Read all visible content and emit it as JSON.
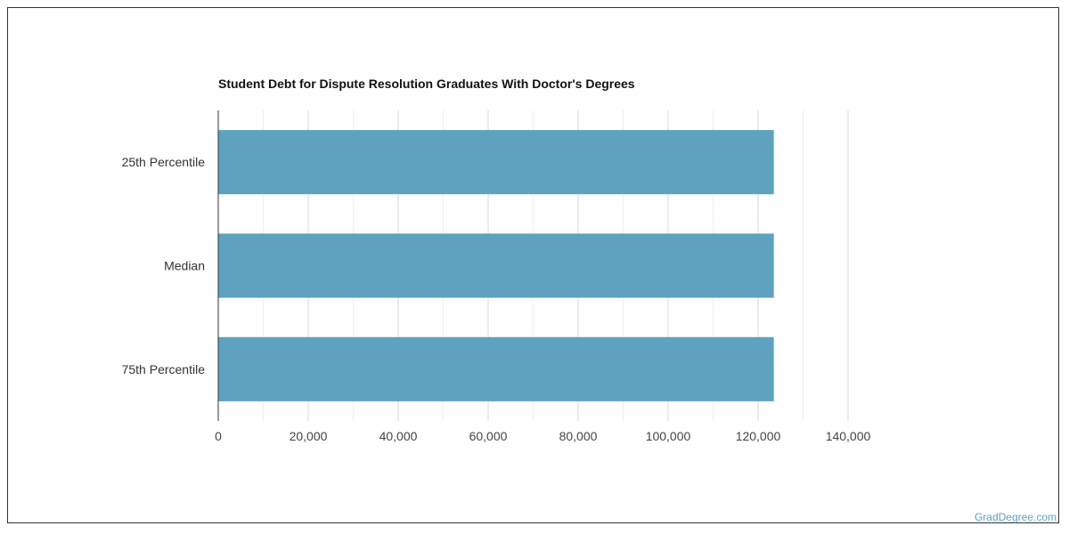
{
  "chart_data": {
    "type": "bar",
    "orientation": "horizontal",
    "title": "Student Debt for Dispute Resolution Graduates With Doctor's Degrees",
    "categories": [
      "25th Percentile",
      "Median",
      "75th Percentile"
    ],
    "values": [
      123500,
      123500,
      123500
    ],
    "xlim": [
      0,
      140000
    ],
    "ticks": [
      0,
      20000,
      40000,
      60000,
      80000,
      100000,
      120000,
      140000
    ],
    "tick_labels": [
      "0",
      "20,000",
      "40,000",
      "60,000",
      "80,000",
      "100,000",
      "120,000",
      "140,000"
    ],
    "grid": true,
    "bar_color": "#5ea2bf",
    "xlabel": "",
    "ylabel": ""
  },
  "footer": {
    "credit": "GradDegree.com"
  },
  "colors": {
    "grid_major": "#d9d9d9",
    "grid_minor": "#eeeeee",
    "axis": "#333333"
  }
}
